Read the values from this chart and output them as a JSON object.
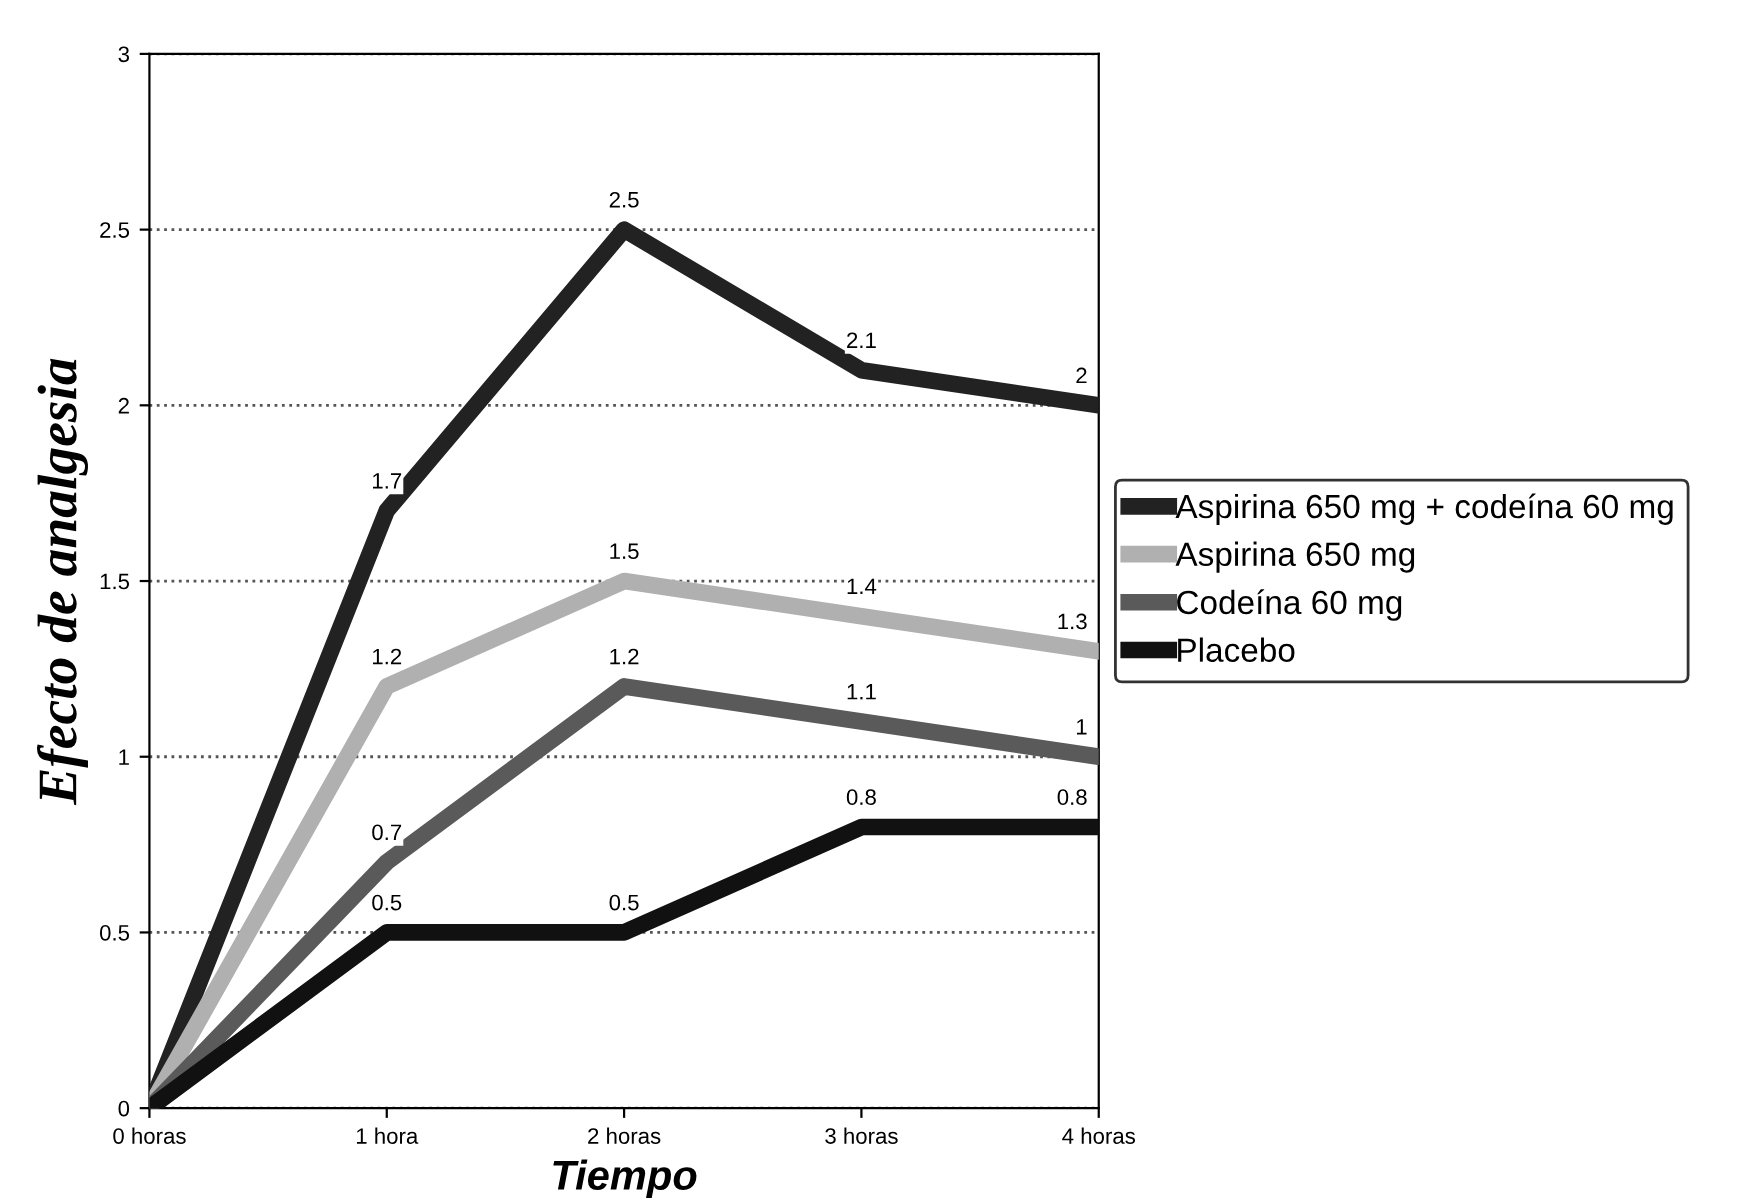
{
  "chart_data": {
    "type": "line",
    "xlabel": "Tiempo",
    "ylabel": "Efecto de analgesia",
    "categories": [
      "0 horas",
      "1 hora",
      "2 horas",
      "3 horas",
      "4 horas"
    ],
    "series": [
      {
        "name": "Aspirina 650 mg + codeína 60 mg",
        "color": "#222222",
        "values": [
          0,
          1.7,
          2.5,
          2.1,
          2
        ],
        "value_labels": [
          null,
          "1.7",
          "2.5",
          "2.1",
          "2"
        ]
      },
      {
        "name": "Aspirina 650 mg",
        "color": "#b0b0b0",
        "values": [
          0,
          1.2,
          1.5,
          1.4,
          1.3
        ],
        "value_labels": [
          null,
          "1.2",
          "1.5",
          "1.4",
          "1.3"
        ]
      },
      {
        "name": "Codeína 60 mg",
        "color": "#5a5a5a",
        "values": [
          0,
          0.7,
          1.2,
          1.1,
          1
        ],
        "value_labels": [
          null,
          "0.7",
          "1.2",
          "1.1",
          "1"
        ]
      },
      {
        "name": "Placebo",
        "color": "#111111",
        "values": [
          0,
          0.5,
          0.5,
          0.8,
          0.8
        ],
        "value_labels": [
          null,
          "0.5",
          "0.5",
          "0.8",
          "0.8"
        ]
      }
    ],
    "ylim": [
      0,
      3
    ],
    "yticks": [
      0,
      0.5,
      1,
      1.5,
      2,
      2.5,
      3
    ],
    "grid": "y",
    "legend": "right",
    "marker": "none",
    "line_style": "solid"
  }
}
